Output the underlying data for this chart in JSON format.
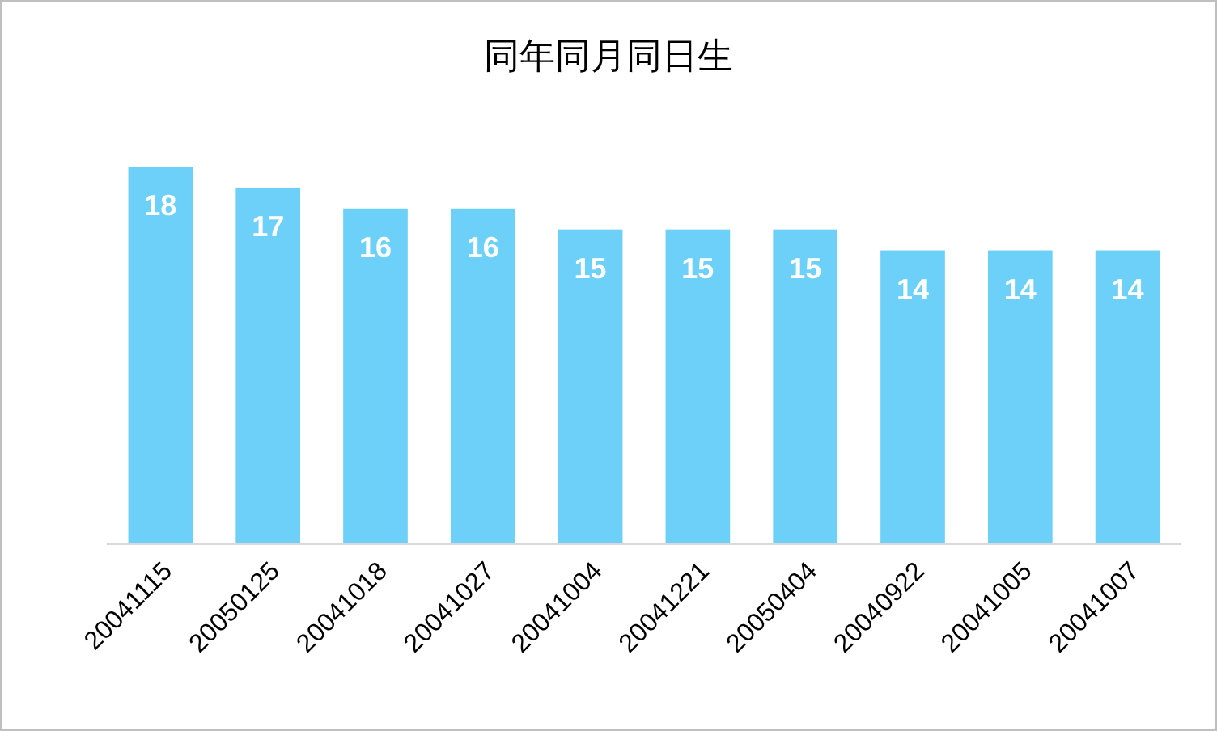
{
  "chart_data": {
    "type": "bar",
    "title": "同年同月同日生",
    "categories": [
      "20041115",
      "20050125",
      "20041018",
      "20041027",
      "20041004",
      "20041221",
      "20050404",
      "20040922",
      "20041005",
      "20041007"
    ],
    "values": [
      18,
      17,
      16,
      16,
      15,
      15,
      15,
      14,
      14,
      14
    ],
    "color": "#6dd0f8",
    "data_labels": true
  }
}
